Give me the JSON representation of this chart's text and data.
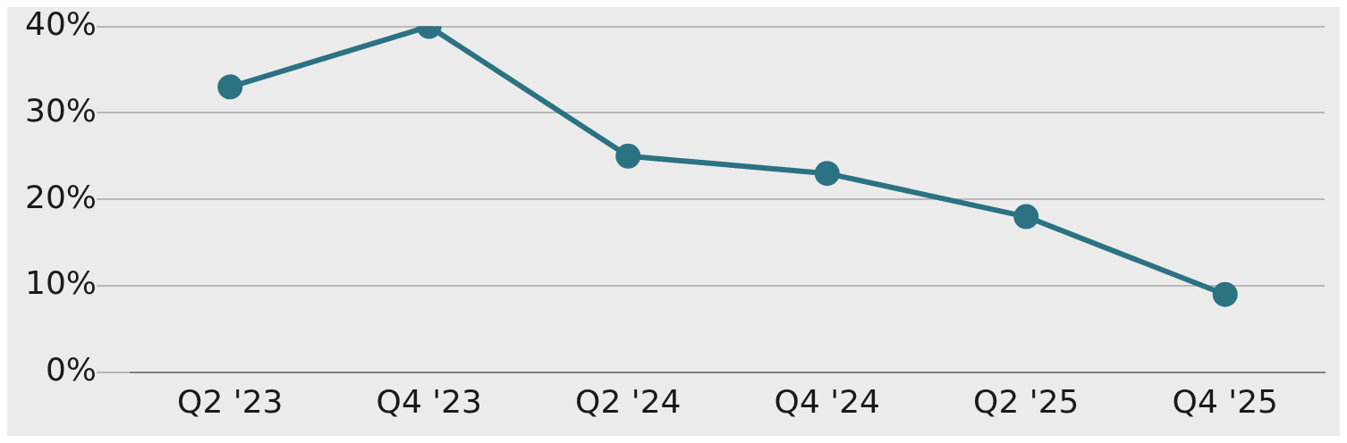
{
  "chart_data": {
    "type": "line",
    "categories": [
      "Q2 '23",
      "Q4 '23",
      "Q2 '24",
      "Q4 '24",
      "Q2 '25",
      "Q4 '25"
    ],
    "series": [
      {
        "color": "#2b7282",
        "values": [
          33,
          40,
          25,
          23,
          18,
          9
        ]
      }
    ],
    "ylim": [
      0,
      40
    ],
    "yticks": [
      {
        "value": 0,
        "label": "0%"
      },
      {
        "value": 10,
        "label": "10%"
      },
      {
        "value": 20,
        "label": "20%"
      },
      {
        "value": 30,
        "label": "30%"
      },
      {
        "value": 40,
        "label": "40%"
      }
    ],
    "grid": "y",
    "legend": false,
    "marker": "circle",
    "line_style": "solid"
  }
}
